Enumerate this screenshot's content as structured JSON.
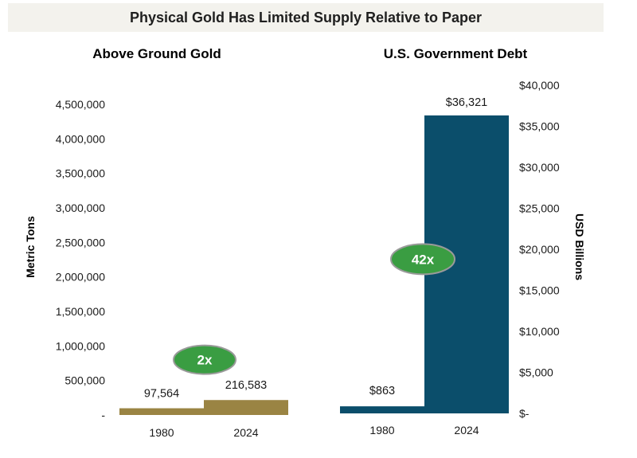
{
  "title": "Physical Gold Has Limited Supply Relative to Paper",
  "colors": {
    "gold": "#9a8443",
    "debt": "#0b4e6b",
    "badge_fill": "#3a9d42",
    "badge_stroke": "#9a9a9a"
  },
  "chart_data": [
    {
      "type": "bar",
      "title": "Above Ground Gold",
      "ylabel": "Metric Tons",
      "categories": [
        "1980",
        "2024"
      ],
      "values": [
        97564,
        216583
      ],
      "value_labels": [
        "97,564",
        "216,583"
      ],
      "ylim": [
        0,
        4500000
      ],
      "yticks": [
        0,
        500000,
        1000000,
        1500000,
        2000000,
        2500000,
        3000000,
        3500000,
        4000000,
        4500000
      ],
      "ytick_labels": [
        "-",
        "500,000",
        "1,000,000",
        "1,500,000",
        "2,000,000",
        "2,500,000",
        "3,000,000",
        "3,500,000",
        "4,000,000",
        "4,500,000"
      ],
      "annotation": {
        "text": "2x",
        "y": 800000
      }
    },
    {
      "type": "bar",
      "title": "U.S. Government Debt",
      "ylabel": "USD Billions",
      "categories": [
        "1980",
        "2024"
      ],
      "values": [
        863,
        36321
      ],
      "value_labels": [
        "$863",
        "$36,321"
      ],
      "ylim": [
        0,
        40000
      ],
      "yticks": [
        0,
        5000,
        10000,
        15000,
        20000,
        25000,
        30000,
        35000,
        40000
      ],
      "ytick_labels": [
        "$-",
        "$5,000",
        "$10,000",
        "$15,000",
        "$20,000",
        "$25,000",
        "$30,000",
        "$35,000",
        "$40,000"
      ],
      "annotation": {
        "text": "42x",
        "y": 18800
      }
    }
  ]
}
